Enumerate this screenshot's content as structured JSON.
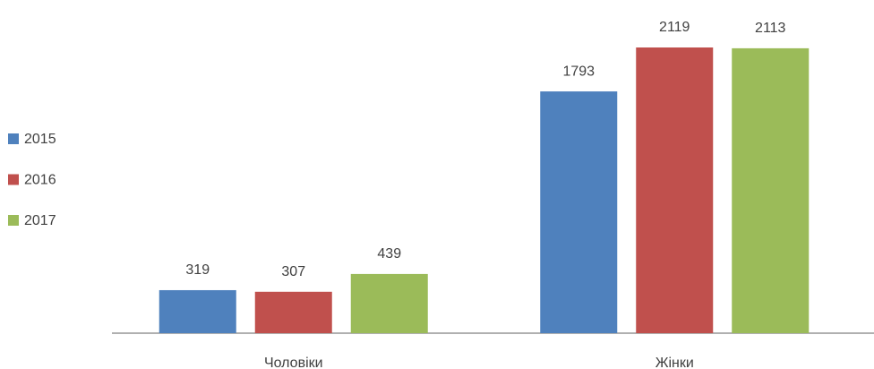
{
  "chart_data": {
    "type": "bar",
    "categories": [
      "Чоловіки",
      "Жінки"
    ],
    "series": [
      {
        "name": "2015",
        "color": "#4f81bd",
        "values": [
          319,
          1793
        ]
      },
      {
        "name": "2016",
        "color": "#c0504d",
        "values": [
          307,
          2119
        ]
      },
      {
        "name": "2017",
        "color": "#9bbb59",
        "values": [
          439,
          2113
        ]
      }
    ],
    "legend": "left"
  }
}
